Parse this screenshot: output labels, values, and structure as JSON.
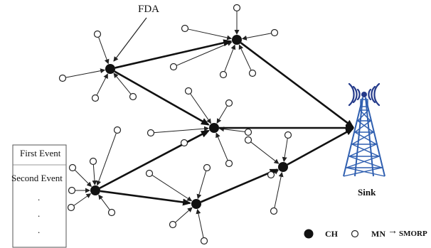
{
  "labels": {
    "fda": "FDA",
    "first_event": "First Event",
    "second_event": "Second Event",
    "ellipsis_dot": ".",
    "sink": "Sink"
  },
  "legend": {
    "ch": "CH",
    "mn": "MN",
    "arrow": "→",
    "smorp": "SMORP"
  },
  "colors": {
    "ch_fill": "#111111",
    "mn_fill": "#ffffff",
    "tower": "#2f5fb0",
    "signal": "#243a8a"
  }
}
